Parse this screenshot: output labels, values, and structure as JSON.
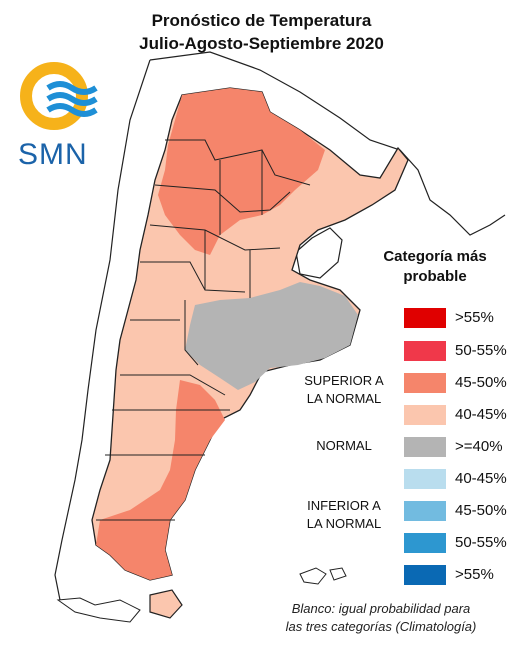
{
  "title": {
    "line1": "Pronóstico de Temperatura",
    "line2": "Julio-Agosto-Septiembre 2020"
  },
  "logo": {
    "text": "SMN"
  },
  "colors": {
    "sup_55": "#e00000",
    "sup_50_55": "#f0384a",
    "sup_45_50": "#f5856b",
    "sup_40_45": "#fbc6ae",
    "normal": "#b4b4b4",
    "inf_40_45": "#b9ddee",
    "inf_45_50": "#72bbe0",
    "inf_50_55": "#2d97d0",
    "inf_55": "#0a69b4",
    "ocean": "#ffffff",
    "border": "#1a1a1a"
  },
  "legend": {
    "title_line1": "Categoría más",
    "title_line2": "probable",
    "groups": {
      "superior_line1": "SUPERIOR A",
      "superior_line2": "LA NORMAL",
      "normal": "NORMAL",
      "inferior_line1": "INFERIOR A",
      "inferior_line2": "LA NORMAL"
    },
    "items": [
      {
        "label": ">55%",
        "color_key": "sup_55"
      },
      {
        "label": "50-55%",
        "color_key": "sup_50_55"
      },
      {
        "label": "45-50%",
        "color_key": "sup_45_50"
      },
      {
        "label": "40-45%",
        "color_key": "sup_40_45"
      },
      {
        "label": ">=40%",
        "color_key": "normal"
      },
      {
        "label": "40-45%",
        "color_key": "inf_40_45"
      },
      {
        "label": "45-50%",
        "color_key": "inf_45_50"
      },
      {
        "label": "50-55%",
        "color_key": "inf_50_55"
      },
      {
        "label": ">55%",
        "color_key": "inf_55"
      }
    ]
  },
  "footnote": {
    "line1": "Blanco: igual probabilidad para",
    "line2": "las tres categorías (Climatología)"
  }
}
